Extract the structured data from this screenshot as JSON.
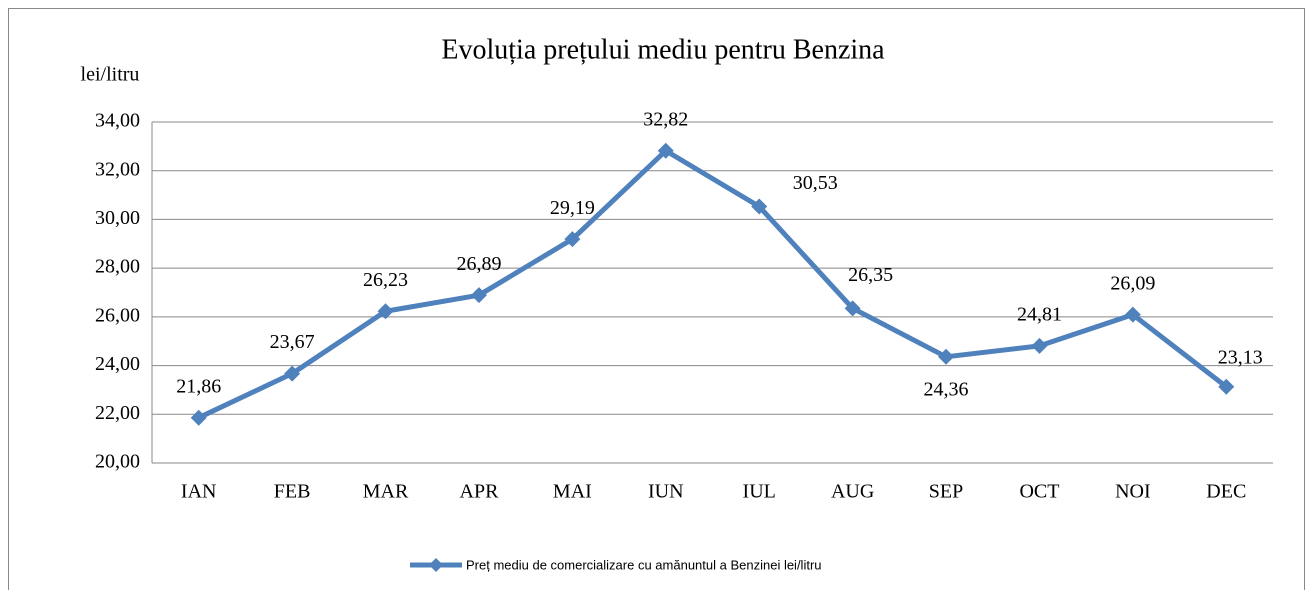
{
  "chart_data": {
    "type": "line",
    "title": "Evoluția prețului mediu pentru Benzina",
    "y_label": "lei/litru",
    "categories": [
      "IAN",
      "FEB",
      "MAR",
      "APR",
      "MAI",
      "IUN",
      "IUL",
      "AUG",
      "SEP",
      "OCT",
      "NOI",
      "DEC"
    ],
    "series": [
      {
        "name": "Preț mediu de comercializare cu amănuntul a Benzinei  lei/litru",
        "color": "#4f81bd",
        "values": [
          21.86,
          23.67,
          26.23,
          26.89,
          29.19,
          32.82,
          30.53,
          26.35,
          24.36,
          24.81,
          26.09,
          23.13
        ],
        "value_labels": [
          "21,86",
          "23,67",
          "26,23",
          "26,89",
          "29,19",
          "32,82",
          "30,53",
          "26,35",
          "24,36",
          "24,81",
          "26,09",
          "23,13"
        ]
      }
    ],
    "ylim": [
      20,
      34
    ],
    "yticks": [
      {
        "value": 20,
        "label": "20,00"
      },
      {
        "value": 22,
        "label": "22,00"
      },
      {
        "value": 24,
        "label": "24,00"
      },
      {
        "value": 26,
        "label": "26,00"
      },
      {
        "value": 28,
        "label": "28,00"
      },
      {
        "value": 30,
        "label": "30,00"
      },
      {
        "value": 32,
        "label": "32,00"
      },
      {
        "value": 34,
        "label": "34,00"
      }
    ],
    "grid": true,
    "legend": "bottom"
  }
}
